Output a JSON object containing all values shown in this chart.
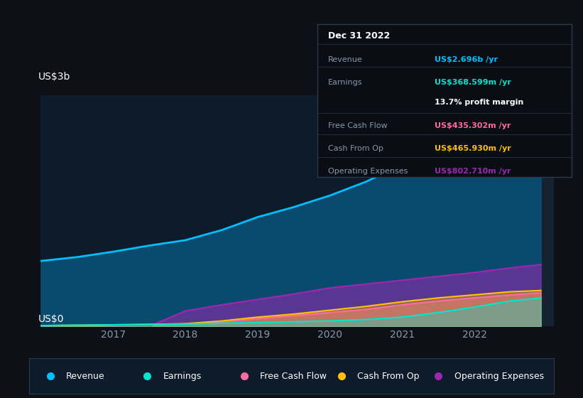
{
  "background_color": "#0d1117",
  "plot_bg_color": "#0d1b2a",
  "ylabel": "US$3b",
  "ylabel2": "US$0",
  "years": [
    2016.0,
    2016.5,
    2017.0,
    2017.5,
    2018.0,
    2018.5,
    2019.0,
    2019.5,
    2020.0,
    2020.5,
    2021.0,
    2021.5,
    2022.0,
    2022.5,
    2022.92
  ],
  "revenue": [
    0.85,
    0.9,
    0.97,
    1.05,
    1.12,
    1.25,
    1.42,
    1.55,
    1.7,
    1.88,
    2.1,
    2.3,
    2.5,
    2.65,
    2.696
  ],
  "earnings": [
    0.01,
    0.015,
    0.02,
    0.025,
    0.03,
    0.04,
    0.05,
    0.06,
    0.07,
    0.09,
    0.12,
    0.18,
    0.25,
    0.33,
    0.368
  ],
  "free_cash_flow": [
    0.005,
    0.01,
    0.015,
    0.02,
    0.03,
    0.06,
    0.1,
    0.14,
    0.18,
    0.22,
    0.28,
    0.33,
    0.37,
    0.41,
    0.435
  ],
  "cash_from_op": [
    0.01,
    0.015,
    0.02,
    0.025,
    0.035,
    0.07,
    0.12,
    0.16,
    0.21,
    0.26,
    0.32,
    0.37,
    0.41,
    0.45,
    0.466
  ],
  "operating_expenses": [
    0.0,
    0.0,
    0.0,
    0.0,
    0.2,
    0.28,
    0.35,
    0.42,
    0.5,
    0.55,
    0.6,
    0.65,
    0.7,
    0.76,
    0.803
  ],
  "revenue_color": "#00bfff",
  "earnings_color": "#00e5cc",
  "free_cash_flow_color": "#ff6b9d",
  "cash_from_op_color": "#ffc107",
  "operating_expenses_color": "#9c27b0",
  "revenue_fill": "#0a4a6e",
  "xticks": [
    2017,
    2018,
    2019,
    2020,
    2021,
    2022
  ],
  "xlim": [
    2016.0,
    2023.1
  ],
  "ylim": [
    0,
    3.0
  ],
  "grid_color": "#1e3a5f",
  "text_color": "#8899aa",
  "info_box": {
    "title": "Dec 31 2022",
    "rows": [
      {
        "label": "Revenue",
        "value": "US$2.696b /yr",
        "color": "#00bfff"
      },
      {
        "label": "Earnings",
        "value": "US$368.599m /yr",
        "color": "#00e5cc"
      },
      {
        "label": "",
        "value": "13.7% profit margin",
        "color": "#ffffff"
      },
      {
        "label": "Free Cash Flow",
        "value": "US$435.302m /yr",
        "color": "#ff6b9d"
      },
      {
        "label": "Cash From Op",
        "value": "US$465.930m /yr",
        "color": "#ffc107"
      },
      {
        "label": "Operating Expenses",
        "value": "US$802.710m /yr",
        "color": "#9c27b0"
      }
    ],
    "bg_color": "#0a0e14",
    "border_color": "#2a3a4a",
    "text_color": "#8899aa",
    "title_color": "#ffffff"
  },
  "legend_items": [
    {
      "label": "Revenue",
      "color": "#00bfff"
    },
    {
      "label": "Earnings",
      "color": "#00e5cc"
    },
    {
      "label": "Free Cash Flow",
      "color": "#ff6b9d"
    },
    {
      "label": "Cash From Op",
      "color": "#ffc107"
    },
    {
      "label": "Operating Expenses",
      "color": "#9c27b0"
    }
  ],
  "legend_bg": "#0d1b2a",
  "legend_border": "#2a3a4a"
}
